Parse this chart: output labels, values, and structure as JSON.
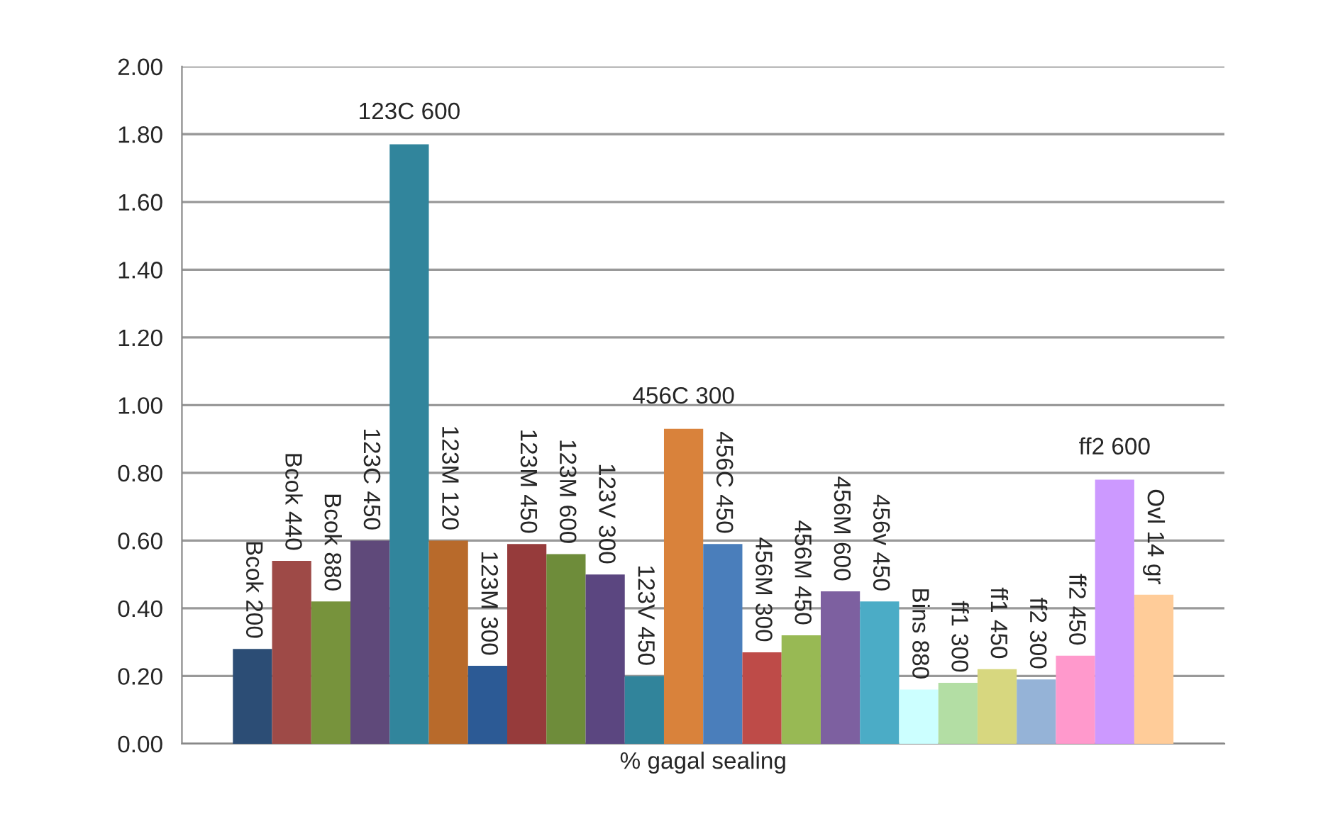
{
  "chart_data": {
    "type": "bar",
    "xlabel": "% gagal sealing",
    "categories": [
      "Bcok 200",
      "Bcok 440",
      "Bcok 880",
      "123C 450",
      "123C 600",
      "123M 120",
      "123M 300",
      "123M 450",
      "123M 600",
      "123V 300",
      "123V 450",
      "456C 300",
      "456C 450",
      "456M 300",
      "456M 450",
      "456M 600",
      "456v 450",
      "Bins 880",
      "ff1 300",
      "ff1 450",
      "ff2 300",
      "ff2 450",
      "ff2 600",
      "Ovl 14 gr"
    ],
    "values": [
      0.28,
      0.54,
      0.42,
      0.6,
      1.77,
      0.6,
      0.23,
      0.59,
      0.56,
      0.5,
      0.2,
      0.93,
      0.59,
      0.27,
      0.32,
      0.45,
      0.42,
      0.16,
      0.18,
      0.22,
      0.19,
      0.26,
      0.78,
      0.44
    ],
    "colors": [
      "#2c4d75",
      "#9e4a47",
      "#77933c",
      "#5f497a",
      "#31859c",
      "#b86a2b",
      "#2c5a95",
      "#963b3b",
      "#6e8c3a",
      "#5b4680",
      "#31849b",
      "#d9823b",
      "#4a7ebb",
      "#be4b48",
      "#98b954",
      "#7d60a0",
      "#4bacc6",
      "#ccffff",
      "#b3dea4",
      "#d7d77f",
      "#95b3d7",
      "#ff99cc",
      "#cc99ff",
      "#ffcc99"
    ],
    "ylim": [
      0,
      2.0
    ],
    "yticks": [
      {
        "value": 0,
        "label": "0.00"
      },
      {
        "value": 0.2,
        "label": "0.20"
      },
      {
        "value": 0.4,
        "label": "0.40"
      },
      {
        "value": 0.6,
        "label": "0.60"
      },
      {
        "value": 0.8,
        "label": "0.80"
      },
      {
        "value": 1.0,
        "label": "1.00"
      },
      {
        "value": 1.2,
        "label": "1.20"
      },
      {
        "value": 1.4,
        "label": "1.40"
      },
      {
        "value": 1.6,
        "label": "1.60"
      },
      {
        "value": 1.8,
        "label": "1.80"
      },
      {
        "value": 2.0,
        "label": "2.00"
      }
    ],
    "grid": "y",
    "legend": false
  }
}
